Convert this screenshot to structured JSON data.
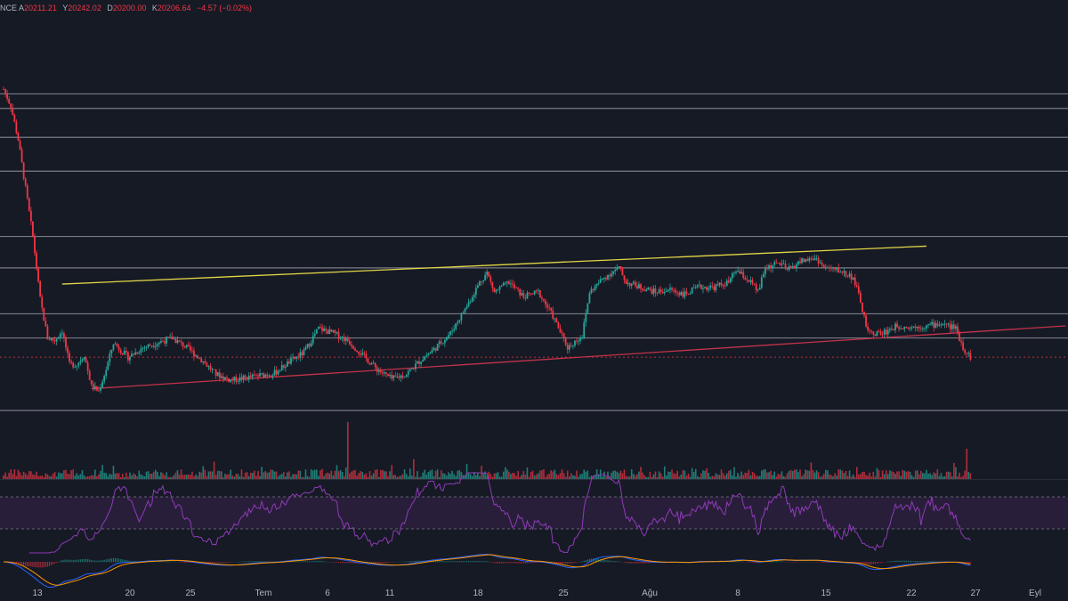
{
  "colors": {
    "background": "#161a25",
    "bull": "#26a69a",
    "bear": "#f23645",
    "level_line": "#787b86",
    "upper_trend": "#e3d547",
    "lower_trend": "#c2334a",
    "rsi_line": "#8f3bb8",
    "rsi_band": "#2a1f3d",
    "macd_line": "#2962ff",
    "signal_line": "#ff9800",
    "axis_text": "#b2b5be"
  },
  "header": {
    "symbol_fragment": "NCE",
    "open_key": "A",
    "open": "20211.21",
    "high_key": "Y",
    "high": "20242.02",
    "low_key": "D",
    "low": "20200.00",
    "close_key": "K",
    "close": "20206.64",
    "change": "−4.57 (−0.02%)"
  },
  "chart_data": {
    "type": "candlestick",
    "title": "",
    "x_ticks": [
      "13",
      "20",
      "25",
      "Tem",
      "6",
      "11",
      "18",
      "25",
      "Ağu",
      "8",
      "15",
      "22",
      "27",
      "Eyl"
    ],
    "price_path": [
      {
        "day": 0,
        "price": 31300
      },
      {
        "day": 1,
        "price": 30600
      },
      {
        "day": 2,
        "price": 29200
      },
      {
        "day": 4,
        "price": 25200
      },
      {
        "day": 5,
        "price": 22600
      },
      {
        "day": 6,
        "price": 21000
      },
      {
        "day": 7,
        "price": 20900
      },
      {
        "day": 8,
        "price": 21300
      },
      {
        "day": 9,
        "price": 19900
      },
      {
        "day": 10,
        "price": 19900
      },
      {
        "day": 11,
        "price": 20300
      },
      {
        "day": 12,
        "price": 19000
      },
      {
        "day": 13,
        "price": 18800
      },
      {
        "day": 14,
        "price": 19700
      },
      {
        "day": 15,
        "price": 20800
      },
      {
        "day": 17,
        "price": 20200
      },
      {
        "day": 19,
        "price": 20600
      },
      {
        "day": 21,
        "price": 20800
      },
      {
        "day": 23,
        "price": 21000
      },
      {
        "day": 25,
        "price": 20600
      },
      {
        "day": 27,
        "price": 20100
      },
      {
        "day": 29,
        "price": 19500
      },
      {
        "day": 31,
        "price": 19250
      },
      {
        "day": 33,
        "price": 19350
      },
      {
        "day": 35,
        "price": 19450
      },
      {
        "day": 37,
        "price": 19550
      },
      {
        "day": 39,
        "price": 20000
      },
      {
        "day": 41,
        "price": 20400
      },
      {
        "day": 43,
        "price": 21400
      },
      {
        "day": 45,
        "price": 21200
      },
      {
        "day": 47,
        "price": 20900
      },
      {
        "day": 49,
        "price": 20300
      },
      {
        "day": 51,
        "price": 19700
      },
      {
        "day": 53,
        "price": 19300
      },
      {
        "day": 55,
        "price": 19500
      },
      {
        "day": 57,
        "price": 20100
      },
      {
        "day": 59,
        "price": 20600
      },
      {
        "day": 61,
        "price": 21200
      },
      {
        "day": 63,
        "price": 22200
      },
      {
        "day": 65,
        "price": 23300
      },
      {
        "day": 66,
        "price": 23700
      },
      {
        "day": 67,
        "price": 22900
      },
      {
        "day": 69,
        "price": 23300
      },
      {
        "day": 71,
        "price": 22700
      },
      {
        "day": 73,
        "price": 22900
      },
      {
        "day": 75,
        "price": 21900
      },
      {
        "day": 77,
        "price": 20600
      },
      {
        "day": 79,
        "price": 21100
      },
      {
        "day": 80,
        "price": 22900
      },
      {
        "day": 82,
        "price": 23500
      },
      {
        "day": 84,
        "price": 23900
      },
      {
        "day": 85,
        "price": 23300
      },
      {
        "day": 87,
        "price": 23100
      },
      {
        "day": 89,
        "price": 22900
      },
      {
        "day": 91,
        "price": 23000
      },
      {
        "day": 93,
        "price": 22800
      },
      {
        "day": 95,
        "price": 23100
      },
      {
        "day": 97,
        "price": 23100
      },
      {
        "day": 99,
        "price": 23300
      },
      {
        "day": 100,
        "price": 23800
      },
      {
        "day": 102,
        "price": 23300
      },
      {
        "day": 103,
        "price": 22900
      },
      {
        "day": 104,
        "price": 23900
      },
      {
        "day": 106,
        "price": 24100
      },
      {
        "day": 107,
        "price": 23800
      },
      {
        "day": 109,
        "price": 24200
      },
      {
        "day": 111,
        "price": 24300
      },
      {
        "day": 112,
        "price": 23900
      },
      {
        "day": 114,
        "price": 23800
      },
      {
        "day": 116,
        "price": 23500
      },
      {
        "day": 117,
        "price": 22500
      },
      {
        "day": 118,
        "price": 21200
      },
      {
        "day": 120,
        "price": 21200
      },
      {
        "day": 122,
        "price": 21500
      },
      {
        "day": 124,
        "price": 21450
      },
      {
        "day": 126,
        "price": 21500
      },
      {
        "day": 128,
        "price": 21600
      },
      {
        "day": 130,
        "price": 21400
      },
      {
        "day": 131,
        "price": 20600
      },
      {
        "day": 132,
        "price": 20207
      }
    ],
    "horizontal_levels": [
      31100,
      30500,
      29300,
      27900,
      25200,
      23900,
      22000,
      21000,
      18000
    ],
    "upper_trendline": {
      "start": {
        "day": 8,
        "price": 23230
      },
      "end": {
        "day": 126,
        "price": 24800
      }
    },
    "lower_trendline": {
      "start": {
        "day": 12,
        "price": 18900
      },
      "end": {
        "day": 145,
        "price": 21500
      }
    },
    "volume_spike_day": 47,
    "panes": [
      "price",
      "volume",
      "rsi",
      "macd"
    ]
  }
}
